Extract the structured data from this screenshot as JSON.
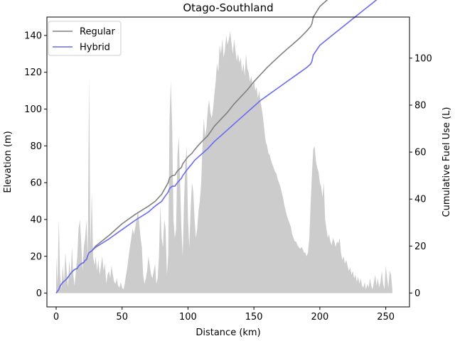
{
  "chart_data": {
    "type": "line",
    "title": "Otago-Southland",
    "xlabel": "Distance (km)",
    "ylabel": "Elevation (m)",
    "y2label": "Cumulative Fuel Use (L)",
    "xlim": [
      -7,
      268
    ],
    "ylim": [
      -7.5,
      150
    ],
    "y2lim": [
      -5.9,
      117.5
    ],
    "xticks": [
      0,
      50,
      100,
      150,
      200,
      250
    ],
    "yticks": [
      0,
      20,
      40,
      60,
      80,
      100,
      120,
      140
    ],
    "y2ticks": [
      0,
      20,
      40,
      60,
      80,
      100
    ],
    "legend_position": "top-left",
    "elevation": {
      "name": "Elevation",
      "color": "#cccccc",
      "points": [
        [
          0,
          20
        ],
        [
          1,
          5
        ],
        [
          2,
          40
        ],
        [
          3,
          10
        ],
        [
          4,
          2
        ],
        [
          5,
          15
        ],
        [
          6,
          5
        ],
        [
          7,
          22
        ],
        [
          8,
          12
        ],
        [
          9,
          3
        ],
        [
          10,
          18
        ],
        [
          11,
          8
        ],
        [
          12,
          25
        ],
        [
          13,
          10
        ],
        [
          14,
          4
        ],
        [
          15,
          12
        ],
        [
          16,
          20
        ],
        [
          17,
          35
        ],
        [
          18,
          40
        ],
        [
          19,
          28
        ],
        [
          20,
          12
        ],
        [
          21,
          25
        ],
        [
          22,
          30
        ],
        [
          23,
          40
        ],
        [
          24,
          20
        ],
        [
          25,
          118
        ],
        [
          26,
          25
        ],
        [
          27,
          55
        ],
        [
          28,
          20
        ],
        [
          29,
          15
        ],
        [
          30,
          20
        ],
        [
          31,
          12
        ],
        [
          32,
          18
        ],
        [
          33,
          10
        ],
        [
          34,
          15
        ],
        [
          35,
          20
        ],
        [
          36,
          12
        ],
        [
          37,
          16
        ],
        [
          38,
          5
        ],
        [
          39,
          10
        ],
        [
          40,
          12
        ],
        [
          41,
          8
        ],
        [
          42,
          15
        ],
        [
          43,
          10
        ],
        [
          44,
          6
        ],
        [
          45,
          5
        ],
        [
          46,
          8
        ],
        [
          47,
          4
        ],
        [
          48,
          3
        ],
        [
          49,
          6
        ],
        [
          50,
          3
        ],
        [
          51,
          2
        ],
        [
          52,
          5
        ],
        [
          53,
          10
        ],
        [
          54,
          14
        ],
        [
          55,
          20
        ],
        [
          56,
          25
        ],
        [
          57,
          30
        ],
        [
          58,
          35
        ],
        [
          59,
          32
        ],
        [
          60,
          36
        ],
        [
          61,
          40
        ],
        [
          62,
          45
        ],
        [
          63,
          38
        ],
        [
          64,
          30
        ],
        [
          65,
          25
        ],
        [
          66,
          10
        ],
        [
          67,
          5
        ],
        [
          68,
          8
        ],
        [
          69,
          12
        ],
        [
          70,
          20
        ],
        [
          71,
          15
        ],
        [
          72,
          10
        ],
        [
          73,
          8
        ],
        [
          74,
          12
        ],
        [
          75,
          16
        ],
        [
          76,
          5
        ],
        [
          77,
          8
        ],
        [
          78,
          20
        ],
        [
          79,
          48
        ],
        [
          80,
          30
        ],
        [
          81,
          25
        ],
        [
          82,
          40
        ],
        [
          83,
          35
        ],
        [
          84,
          10
        ],
        [
          85,
          20
        ],
        [
          86,
          95
        ],
        [
          87,
          115
        ],
        [
          88,
          90
        ],
        [
          89,
          40
        ],
        [
          90,
          30
        ],
        [
          91,
          35
        ],
        [
          92,
          75
        ],
        [
          93,
          85
        ],
        [
          94,
          60
        ],
        [
          95,
          35
        ],
        [
          96,
          20
        ],
        [
          97,
          50
        ],
        [
          98,
          70
        ],
        [
          99,
          80
        ],
        [
          100,
          40
        ],
        [
          101,
          25
        ],
        [
          102,
          45
        ],
        [
          103,
          60
        ],
        [
          104,
          55
        ],
        [
          105,
          40
        ],
        [
          106,
          30
        ],
        [
          107,
          35
        ],
        [
          108,
          45
        ],
        [
          109,
          50
        ],
        [
          110,
          60
        ],
        [
          111,
          80
        ],
        [
          112,
          95
        ],
        [
          113,
          85
        ],
        [
          114,
          90
        ],
        [
          115,
          100
        ],
        [
          116,
          105
        ],
        [
          117,
          98
        ],
        [
          118,
          95
        ],
        [
          119,
          100
        ],
        [
          120,
          108
        ],
        [
          121,
          115
        ],
        [
          122,
          125
        ],
        [
          123,
          120
        ],
        [
          124,
          135
        ],
        [
          125,
          130
        ],
        [
          126,
          138
        ],
        [
          127,
          128
        ],
        [
          128,
          132
        ],
        [
          129,
          140
        ],
        [
          130,
          135
        ],
        [
          131,
          138
        ],
        [
          132,
          142
        ],
        [
          133,
          136
        ],
        [
          134,
          130
        ],
        [
          135,
          138
        ],
        [
          136,
          132
        ],
        [
          137,
          126
        ],
        [
          138,
          130
        ],
        [
          139,
          125
        ],
        [
          140,
          128
        ],
        [
          141,
          120
        ],
        [
          142,
          125
        ],
        [
          143,
          118
        ],
        [
          144,
          130
        ],
        [
          145,
          122
        ],
        [
          146,
          120
        ],
        [
          147,
          115
        ],
        [
          148,
          118
        ],
        [
          149,
          112
        ],
        [
          150,
          116
        ],
        [
          151,
          110
        ],
        [
          152,
          112
        ],
        [
          153,
          106
        ],
        [
          154,
          110
        ],
        [
          155,
          104
        ],
        [
          156,
          100
        ],
        [
          157,
          95
        ],
        [
          158,
          88
        ],
        [
          159,
          82
        ],
        [
          160,
          80
        ],
        [
          161,
          76
        ],
        [
          162,
          75
        ],
        [
          163,
          72
        ],
        [
          164,
          70
        ],
        [
          165,
          68
        ],
        [
          166,
          66
        ],
        [
          167,
          65
        ],
        [
          168,
          62
        ],
        [
          169,
          60
        ],
        [
          170,
          58
        ],
        [
          171,
          55
        ],
        [
          172,
          52
        ],
        [
          173,
          48
        ],
        [
          174,
          45
        ],
        [
          175,
          42
        ],
        [
          176,
          40
        ],
        [
          177,
          38
        ],
        [
          178,
          36
        ],
        [
          179,
          32
        ],
        [
          180,
          30
        ],
        [
          181,
          28
        ],
        [
          182,
          28
        ],
        [
          183,
          26
        ],
        [
          184,
          25
        ],
        [
          185,
          24
        ],
        [
          186,
          25
        ],
        [
          187,
          24
        ],
        [
          188,
          22
        ],
        [
          189,
          22
        ],
        [
          190,
          20
        ],
        [
          191,
          22
        ],
        [
          192,
          30
        ],
        [
          193,
          48
        ],
        [
          194,
          65
        ],
        [
          195,
          78
        ],
        [
          196,
          80
        ],
        [
          197,
          72
        ],
        [
          198,
          68
        ],
        [
          199,
          66
        ],
        [
          200,
          60
        ],
        [
          201,
          58
        ],
        [
          202,
          52
        ],
        [
          203,
          60
        ],
        [
          204,
          40
        ],
        [
          205,
          35
        ],
        [
          206,
          30
        ],
        [
          207,
          32
        ],
        [
          208,
          28
        ],
        [
          209,
          26
        ],
        [
          210,
          30
        ],
        [
          211,
          28
        ],
        [
          212,
          25
        ],
        [
          213,
          28
        ],
        [
          214,
          27
        ],
        [
          215,
          30
        ],
        [
          216,
          22
        ],
        [
          217,
          18
        ],
        [
          218,
          20
        ],
        [
          219,
          16
        ],
        [
          220,
          18
        ],
        [
          221,
          15
        ],
        [
          222,
          12
        ],
        [
          223,
          14
        ],
        [
          224,
          10
        ],
        [
          225,
          12
        ],
        [
          226,
          8
        ],
        [
          227,
          10
        ],
        [
          228,
          6
        ],
        [
          229,
          9
        ],
        [
          230,
          5
        ],
        [
          231,
          8
        ],
        [
          232,
          4
        ],
        [
          233,
          3
        ],
        [
          234,
          6
        ],
        [
          235,
          2
        ],
        [
          236,
          5
        ],
        [
          237,
          3
        ],
        [
          238,
          8
        ],
        [
          239,
          4
        ],
        [
          240,
          2
        ],
        [
          241,
          6
        ],
        [
          242,
          10
        ],
        [
          243,
          4
        ],
        [
          244,
          8
        ],
        [
          245,
          3
        ],
        [
          246,
          6
        ],
        [
          247,
          12
        ],
        [
          248,
          5
        ],
        [
          249,
          2
        ],
        [
          250,
          15
        ],
        [
          251,
          8
        ],
        [
          252,
          3
        ],
        [
          253,
          12
        ],
        [
          254,
          10
        ],
        [
          255,
          2
        ]
      ]
    },
    "series": [
      {
        "name": "Regular",
        "color": "#808080",
        "x": [
          0,
          2,
          3,
          5,
          8,
          10,
          12,
          14,
          16,
          17,
          19,
          21,
          22,
          23,
          24,
          25,
          26,
          27,
          30,
          40,
          50,
          60,
          70,
          75,
          80,
          83,
          85,
          86,
          88,
          90,
          92,
          94,
          95,
          96,
          98,
          100,
          103,
          105,
          108,
          110,
          115,
          120,
          125,
          130,
          135,
          140,
          145,
          150,
          155,
          160,
          165,
          170,
          175,
          180,
          185,
          190,
          193,
          194,
          195,
          200,
          210,
          220,
          230,
          240,
          250,
          255
        ],
        "y": [
          0,
          1.5,
          3,
          4.5,
          6,
          7.5,
          9,
          10,
          10.5,
          11.5,
          12.5,
          13,
          14,
          14.2,
          16,
          17.2,
          17.5,
          18,
          20,
          24.5,
          29.5,
          33.5,
          37,
          39,
          42,
          45,
          47,
          49,
          50,
          50.2,
          52,
          53,
          53.5,
          55,
          56.5,
          58,
          59.5,
          61,
          63,
          64.2,
          67,
          71,
          74,
          77,
          80.5,
          83.5,
          86.5,
          90,
          93,
          96,
          98.7,
          101.3,
          103.8,
          106.2,
          108.7,
          111.5,
          113.5,
          114.7,
          117.5,
          122,
          127,
          132,
          137,
          142,
          147,
          149
        ]
      },
      {
        "name": "Hybrid",
        "color": "#6b6bf0",
        "x": [
          0,
          2,
          3,
          5,
          8,
          10,
          12,
          14,
          16,
          17,
          19,
          21,
          22,
          23,
          24,
          25,
          26,
          27,
          30,
          40,
          50,
          60,
          70,
          75,
          80,
          83,
          85,
          86,
          88,
          90,
          92,
          94,
          95,
          96,
          98,
          100,
          103,
          105,
          108,
          110,
          115,
          120,
          125,
          130,
          135,
          140,
          145,
          150,
          155,
          160,
          165,
          170,
          175,
          180,
          185,
          190,
          193,
          194,
          195,
          200,
          210,
          220,
          230,
          240,
          250,
          255
        ],
        "y": [
          0,
          1.5,
          3,
          4.5,
          6,
          7.5,
          9,
          10,
          10.5,
          11.5,
          12.5,
          13,
          14,
          14.2,
          16,
          17.2,
          17.5,
          18,
          19.5,
          23,
          27,
          31,
          34.5,
          37,
          39,
          41.5,
          43,
          44.5,
          45.5,
          45.5,
          47,
          48.3,
          48.8,
          50,
          51.5,
          53,
          55,
          56.5,
          58,
          59,
          61.5,
          64.5,
          67,
          69.5,
          72,
          74.5,
          77,
          79.5,
          82,
          84,
          86,
          88,
          90,
          92,
          94,
          96,
          97.5,
          98.7,
          101.3,
          105.5,
          110,
          114.5,
          119,
          123.5,
          128,
          130
        ]
      }
    ]
  }
}
